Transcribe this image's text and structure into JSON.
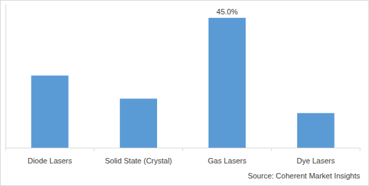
{
  "chart_data": {
    "type": "bar",
    "categories": [
      "Diode Lasers",
      "Solid State (Crystal)",
      "Gas Lasers",
      "Dye Lasers"
    ],
    "values": [
      25,
      17,
      45,
      12
    ],
    "value_labels": [
      null,
      null,
      "45.0%",
      null
    ],
    "data_labels": true,
    "color": "#5b9bd5",
    "ylim": [
      0,
      50
    ],
    "yticks": [],
    "grid": false,
    "tick_labels": "x",
    "annotations": [
      "Source: Coherent Market Insights"
    ]
  }
}
